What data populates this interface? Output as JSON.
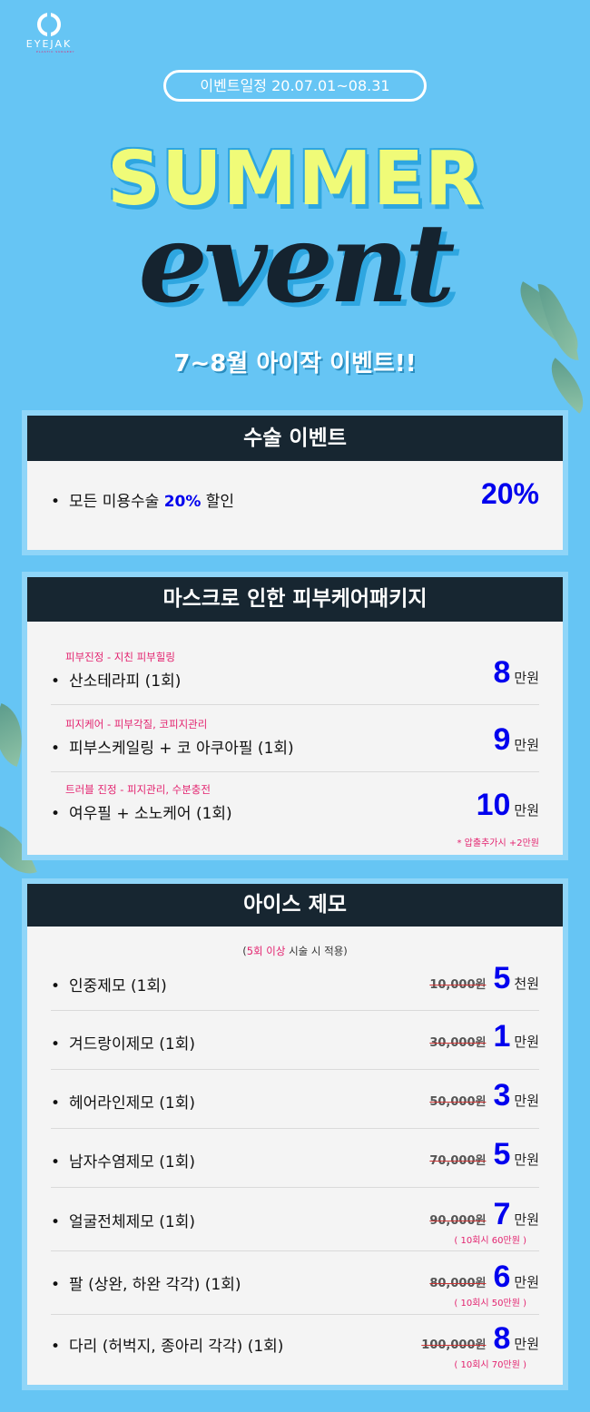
{
  "logo": {
    "name": "EYEJAK",
    "sub": "PLASTIC SURGERY"
  },
  "period": "이벤트일정 20.07.01~08.31",
  "title1": "SUMMER",
  "title2": "event",
  "tagline": "7~8월 아이작 이벤트!!",
  "colors": {
    "background": "#66c5f4",
    "header": "#172631",
    "price": "#0000ee",
    "accent": "#e3236f",
    "title": "#f0fb78"
  },
  "surgery": {
    "title": "수술 이벤트",
    "item_prefix": "모든 미용수술 ",
    "item_highlight": "20%",
    "item_suffix": " 할인",
    "badge": "20%"
  },
  "skin": {
    "title": "마스크로 인한 피부케어패키지",
    "items": [
      {
        "sub": "피부진정 - 지친 피부힐링",
        "name": "산소테라피 (1회)",
        "price": "8",
        "unit": "만원"
      },
      {
        "sub": "피지케어 - 피부각질, 코피지관리",
        "name": "피부스케일링 + 코 아쿠아필 (1회)",
        "price": "9",
        "unit": "만원"
      },
      {
        "sub": "트러블 진정 - 피지관리, 수분충전",
        "name": "여우필 + 소노케어 (1회)",
        "price": "10",
        "unit": "만원",
        "note": "* 압출추가시 +2만원"
      }
    ]
  },
  "ice": {
    "title": "아이스 제모",
    "cond_pre": "(",
    "cond_hl": "5회 이상",
    "cond_post": " 시술 시 적용)",
    "items": [
      {
        "name": "인중제모 (1회)",
        "old": "10,000원",
        "price": "5",
        "unit": "천원"
      },
      {
        "name": "겨드랑이제모 (1회)",
        "old": "30,000원",
        "price": "1",
        "unit": "만원"
      },
      {
        "name": "헤어라인제모 (1회)",
        "old": "50,000원",
        "price": "3",
        "unit": "만원"
      },
      {
        "name": "남자수염제모 (1회)",
        "old": "70,000원",
        "price": "5",
        "unit": "만원"
      },
      {
        "name": "얼굴전체제모 (1회)",
        "old": "90,000원",
        "price": "7",
        "unit": "만원",
        "note": "( 10회시 60만원 )"
      },
      {
        "name": "팔 (상완, 하완 각각) (1회)",
        "old": "80,000원",
        "price": "6",
        "unit": "만원",
        "note": "( 10회시 50만원 )"
      },
      {
        "name": "다리 (허벅지, 종아리 각각) (1회)",
        "old": "100,000원",
        "price": "8",
        "unit": "만원",
        "note": "( 10회시 70만원 )"
      }
    ]
  }
}
